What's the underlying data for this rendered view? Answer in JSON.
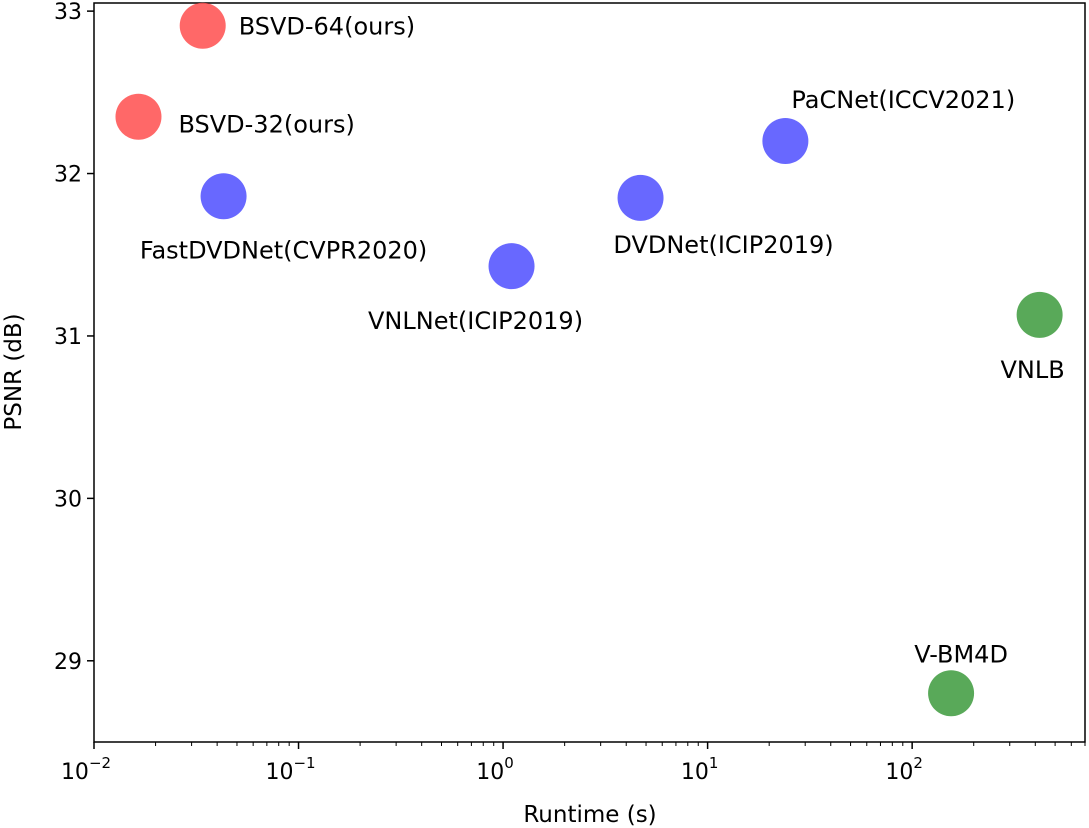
{
  "chart_data": {
    "type": "scatter",
    "title": "",
    "xlabel": "Runtime (s)",
    "ylabel": "PSNR (dB)",
    "xscale": "log",
    "xlim": [
      0.01,
      700
    ],
    "ylim": [
      28.5,
      33.05
    ],
    "xticks": [
      {
        "value": 0.01,
        "base": "10",
        "exp": "−2"
      },
      {
        "value": 0.1,
        "base": "10",
        "exp": "−1"
      },
      {
        "value": 1,
        "base": "10",
        "exp": "0"
      },
      {
        "value": 10,
        "base": "10",
        "exp": "1"
      },
      {
        "value": 100,
        "base": "10",
        "exp": "2"
      }
    ],
    "yticks": [
      "29",
      "30",
      "31",
      "32",
      "33"
    ],
    "grid": false,
    "colors": {
      "ours": "#ff4d4d",
      "dl": "#4d4dff",
      "classic": "#3c9a3c"
    },
    "points": [
      {
        "label": "BSVD-64(ours)",
        "x": 0.034,
        "y": 32.91,
        "group": "ours",
        "label_pos": "right"
      },
      {
        "label": "BSVD-32(ours)",
        "x": 0.0165,
        "y": 32.35,
        "group": "ours",
        "label_pos": "right-below"
      },
      {
        "label": "FastDVDNet(CVPR2020)",
        "x": 0.043,
        "y": 31.86,
        "group": "dl",
        "label_pos": "below"
      },
      {
        "label": "VNLNet(ICIP2019)",
        "x": 1.1,
        "y": 31.43,
        "group": "dl",
        "label_pos": "below"
      },
      {
        "label": "DVDNet(ICIP2019)",
        "x": 4.7,
        "y": 31.85,
        "group": "dl",
        "label_pos": "below-right"
      },
      {
        "label": "PaCNet(ICCV2021)",
        "x": 24,
        "y": 32.2,
        "group": "dl",
        "label_pos": "above-right"
      },
      {
        "label": "VNLB",
        "x": 420,
        "y": 31.13,
        "group": "classic",
        "label_pos": "below"
      },
      {
        "label": "V-BM4D",
        "x": 155,
        "y": 28.8,
        "group": "classic",
        "label_pos": "above"
      }
    ]
  }
}
